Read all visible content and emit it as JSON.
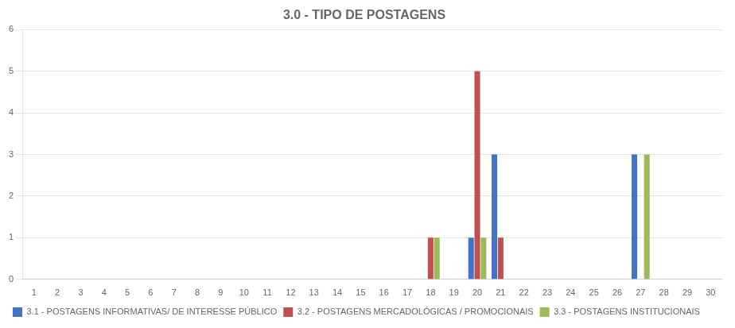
{
  "chart_data": {
    "type": "bar",
    "title": "3.0 - TIPO DE POSTAGENS",
    "x": [
      18,
      20,
      21,
      27
    ],
    "series": [
      {
        "name": "3.1 - POSTAGENS INFORMATIVAS/ DE INTERESSE PÚBLICO",
        "color": "#4472C4",
        "values": [
          0,
          1,
          3,
          3
        ]
      },
      {
        "name": "3.2 - POSTAGENS MERCADOLÓGICAS / PROMOCIONAIS",
        "color": "#C0504D",
        "values": [
          1,
          5,
          1,
          0
        ]
      },
      {
        "name": "3.3 - POSTAGENS INSTITUCIONAIS",
        "color": "#9BBB59",
        "values": [
          1,
          1,
          0,
          3
        ]
      }
    ],
    "xlim": [
      0.5,
      30.5
    ],
    "xticks": [
      1,
      2,
      3,
      4,
      5,
      6,
      7,
      8,
      9,
      10,
      11,
      12,
      13,
      14,
      15,
      16,
      17,
      18,
      19,
      20,
      21,
      22,
      23,
      24,
      25,
      26,
      27,
      28,
      29,
      30
    ],
    "ylim": [
      0,
      6
    ],
    "yticks": [
      0,
      1,
      2,
      3,
      4,
      5,
      6
    ],
    "grid": "y",
    "legend": "bottom"
  }
}
